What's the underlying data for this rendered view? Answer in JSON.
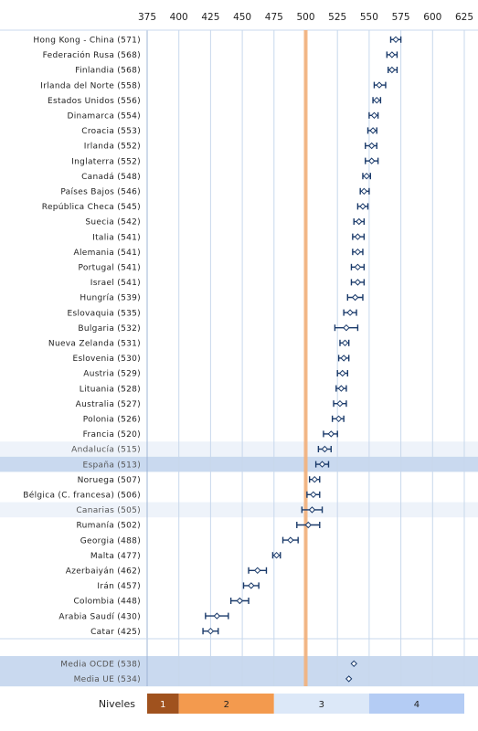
{
  "chart_data": {
    "type": "dot-errorbar",
    "xlim": [
      375,
      625
    ],
    "xticks": [
      375,
      400,
      425,
      450,
      475,
      500,
      525,
      550,
      575,
      600,
      625
    ],
    "reference_value": 500,
    "rows": [
      {
        "label": "Hong Kong - China (571)",
        "value": 571,
        "ci": [
          567,
          575
        ],
        "highlight": "none"
      },
      {
        "label": "Federación Rusa (568)",
        "value": 568,
        "ci": [
          564,
          572
        ],
        "highlight": "none"
      },
      {
        "label": "Finlandia (568)",
        "value": 568,
        "ci": [
          565,
          572
        ],
        "highlight": "none"
      },
      {
        "label": "Irlanda del Norte (558)",
        "value": 558,
        "ci": [
          554,
          563
        ],
        "highlight": "none"
      },
      {
        "label": "Estados Unidos (556)",
        "value": 556,
        "ci": [
          553,
          559
        ],
        "highlight": "none"
      },
      {
        "label": "Dinamarca (554)",
        "value": 554,
        "ci": [
          550,
          557
        ],
        "highlight": "none"
      },
      {
        "label": "Croacia (553)",
        "value": 553,
        "ci": [
          549,
          556
        ],
        "highlight": "none"
      },
      {
        "label": "Irlanda (552)",
        "value": 552,
        "ci": [
          547,
          556
        ],
        "highlight": "none"
      },
      {
        "label": "Inglaterra (552)",
        "value": 552,
        "ci": [
          547,
          557
        ],
        "highlight": "none"
      },
      {
        "label": "Canadá (548)",
        "value": 548,
        "ci": [
          545,
          551
        ],
        "highlight": "none"
      },
      {
        "label": "Países Bajos (546)",
        "value": 546,
        "ci": [
          543,
          550
        ],
        "highlight": "none"
      },
      {
        "label": "República Checa (545)",
        "value": 545,
        "ci": [
          541,
          549
        ],
        "highlight": "none"
      },
      {
        "label": "Suecia (542)",
        "value": 542,
        "ci": [
          538,
          546
        ],
        "highlight": "none"
      },
      {
        "label": "Italia (541)",
        "value": 541,
        "ci": [
          537,
          546
        ],
        "highlight": "none"
      },
      {
        "label": "Alemania (541)",
        "value": 541,
        "ci": [
          537,
          545
        ],
        "highlight": "none"
      },
      {
        "label": "Portugal (541)",
        "value": 541,
        "ci": [
          536,
          546
        ],
        "highlight": "none"
      },
      {
        "label": "Israel (541)",
        "value": 541,
        "ci": [
          536,
          546
        ],
        "highlight": "none"
      },
      {
        "label": "Hungría (539)",
        "value": 539,
        "ci": [
          533,
          545
        ],
        "highlight": "none"
      },
      {
        "label": "Eslovaquia (535)",
        "value": 535,
        "ci": [
          530,
          540
        ],
        "highlight": "none"
      },
      {
        "label": "Bulgaria (532)",
        "value": 532,
        "ci": [
          523,
          541
        ],
        "highlight": "none"
      },
      {
        "label": "Nueva Zelanda (531)",
        "value": 531,
        "ci": [
          527,
          534
        ],
        "highlight": "none"
      },
      {
        "label": "Eslovenia (530)",
        "value": 530,
        "ci": [
          526,
          534
        ],
        "highlight": "none"
      },
      {
        "label": "Austria (529)",
        "value": 529,
        "ci": [
          525,
          533
        ],
        "highlight": "none"
      },
      {
        "label": "Lituania (528)",
        "value": 528,
        "ci": [
          524,
          532
        ],
        "highlight": "none"
      },
      {
        "label": "Australia (527)",
        "value": 527,
        "ci": [
          522,
          532
        ],
        "highlight": "none"
      },
      {
        "label": "Polonia (526)",
        "value": 526,
        "ci": [
          521,
          530
        ],
        "highlight": "none"
      },
      {
        "label": "Francia (520)",
        "value": 520,
        "ci": [
          514,
          525
        ],
        "highlight": "none"
      },
      {
        "label": "Andalucía (515)",
        "value": 515,
        "ci": [
          510,
          520
        ],
        "highlight": "light"
      },
      {
        "label": "España (513)",
        "value": 513,
        "ci": [
          508,
          518
        ],
        "highlight": "strong"
      },
      {
        "label": "Noruega (507)",
        "value": 507,
        "ci": [
          503,
          511
        ],
        "highlight": "none"
      },
      {
        "label": "Bélgica (C. francesa) (506)",
        "value": 506,
        "ci": [
          501,
          511
        ],
        "highlight": "none"
      },
      {
        "label": "Canarias (505)",
        "value": 505,
        "ci": [
          497,
          513
        ],
        "highlight": "light"
      },
      {
        "label": "Rumanía (502)",
        "value": 502,
        "ci": [
          493,
          511
        ],
        "highlight": "none"
      },
      {
        "label": "Georgia (488)",
        "value": 488,
        "ci": [
          482,
          494
        ],
        "highlight": "none"
      },
      {
        "label": "Malta (477)",
        "value": 477,
        "ci": [
          474,
          480
        ],
        "highlight": "none"
      },
      {
        "label": "Azerbaiyán (462)",
        "value": 462,
        "ci": [
          455,
          469
        ],
        "highlight": "none"
      },
      {
        "label": "Irán (457)",
        "value": 457,
        "ci": [
          451,
          463
        ],
        "highlight": "none"
      },
      {
        "label": "Colombia (448)",
        "value": 448,
        "ci": [
          441,
          455
        ],
        "highlight": "none"
      },
      {
        "label": "Arabia Saudí (430)",
        "value": 430,
        "ci": [
          421,
          439
        ],
        "highlight": "none"
      },
      {
        "label": "Catar (425)",
        "value": 425,
        "ci": [
          419,
          431
        ],
        "highlight": "none"
      }
    ],
    "summary_rows": [
      {
        "label": "Media OCDE (538)",
        "value": 538
      },
      {
        "label": "Media UE (534)",
        "value": 534
      }
    ],
    "levels": {
      "title": "Niveles",
      "bands": [
        {
          "label": "1",
          "from": 375,
          "to": 400,
          "color": "#a0521e",
          "text_color": "#ffffff"
        },
        {
          "label": "2",
          "from": 400,
          "to": 475,
          "color": "#f39a4e",
          "text_color": "#222222"
        },
        {
          "label": "3",
          "from": 475,
          "to": 550,
          "color": "#dce8f8",
          "text_color": "#222222"
        },
        {
          "label": "4",
          "from": 550,
          "to": 625,
          "color": "#b4ccf4",
          "text_color": "#222222"
        }
      ]
    },
    "colors": {
      "marker": "#1a3a6a",
      "grid": "#c8d8ec",
      "reference_line": "#f3b07a",
      "highlight_light": "#eef3fa",
      "highlight_strong": "#c9d9ef",
      "summary_bg": "#c9d9ef"
    }
  }
}
